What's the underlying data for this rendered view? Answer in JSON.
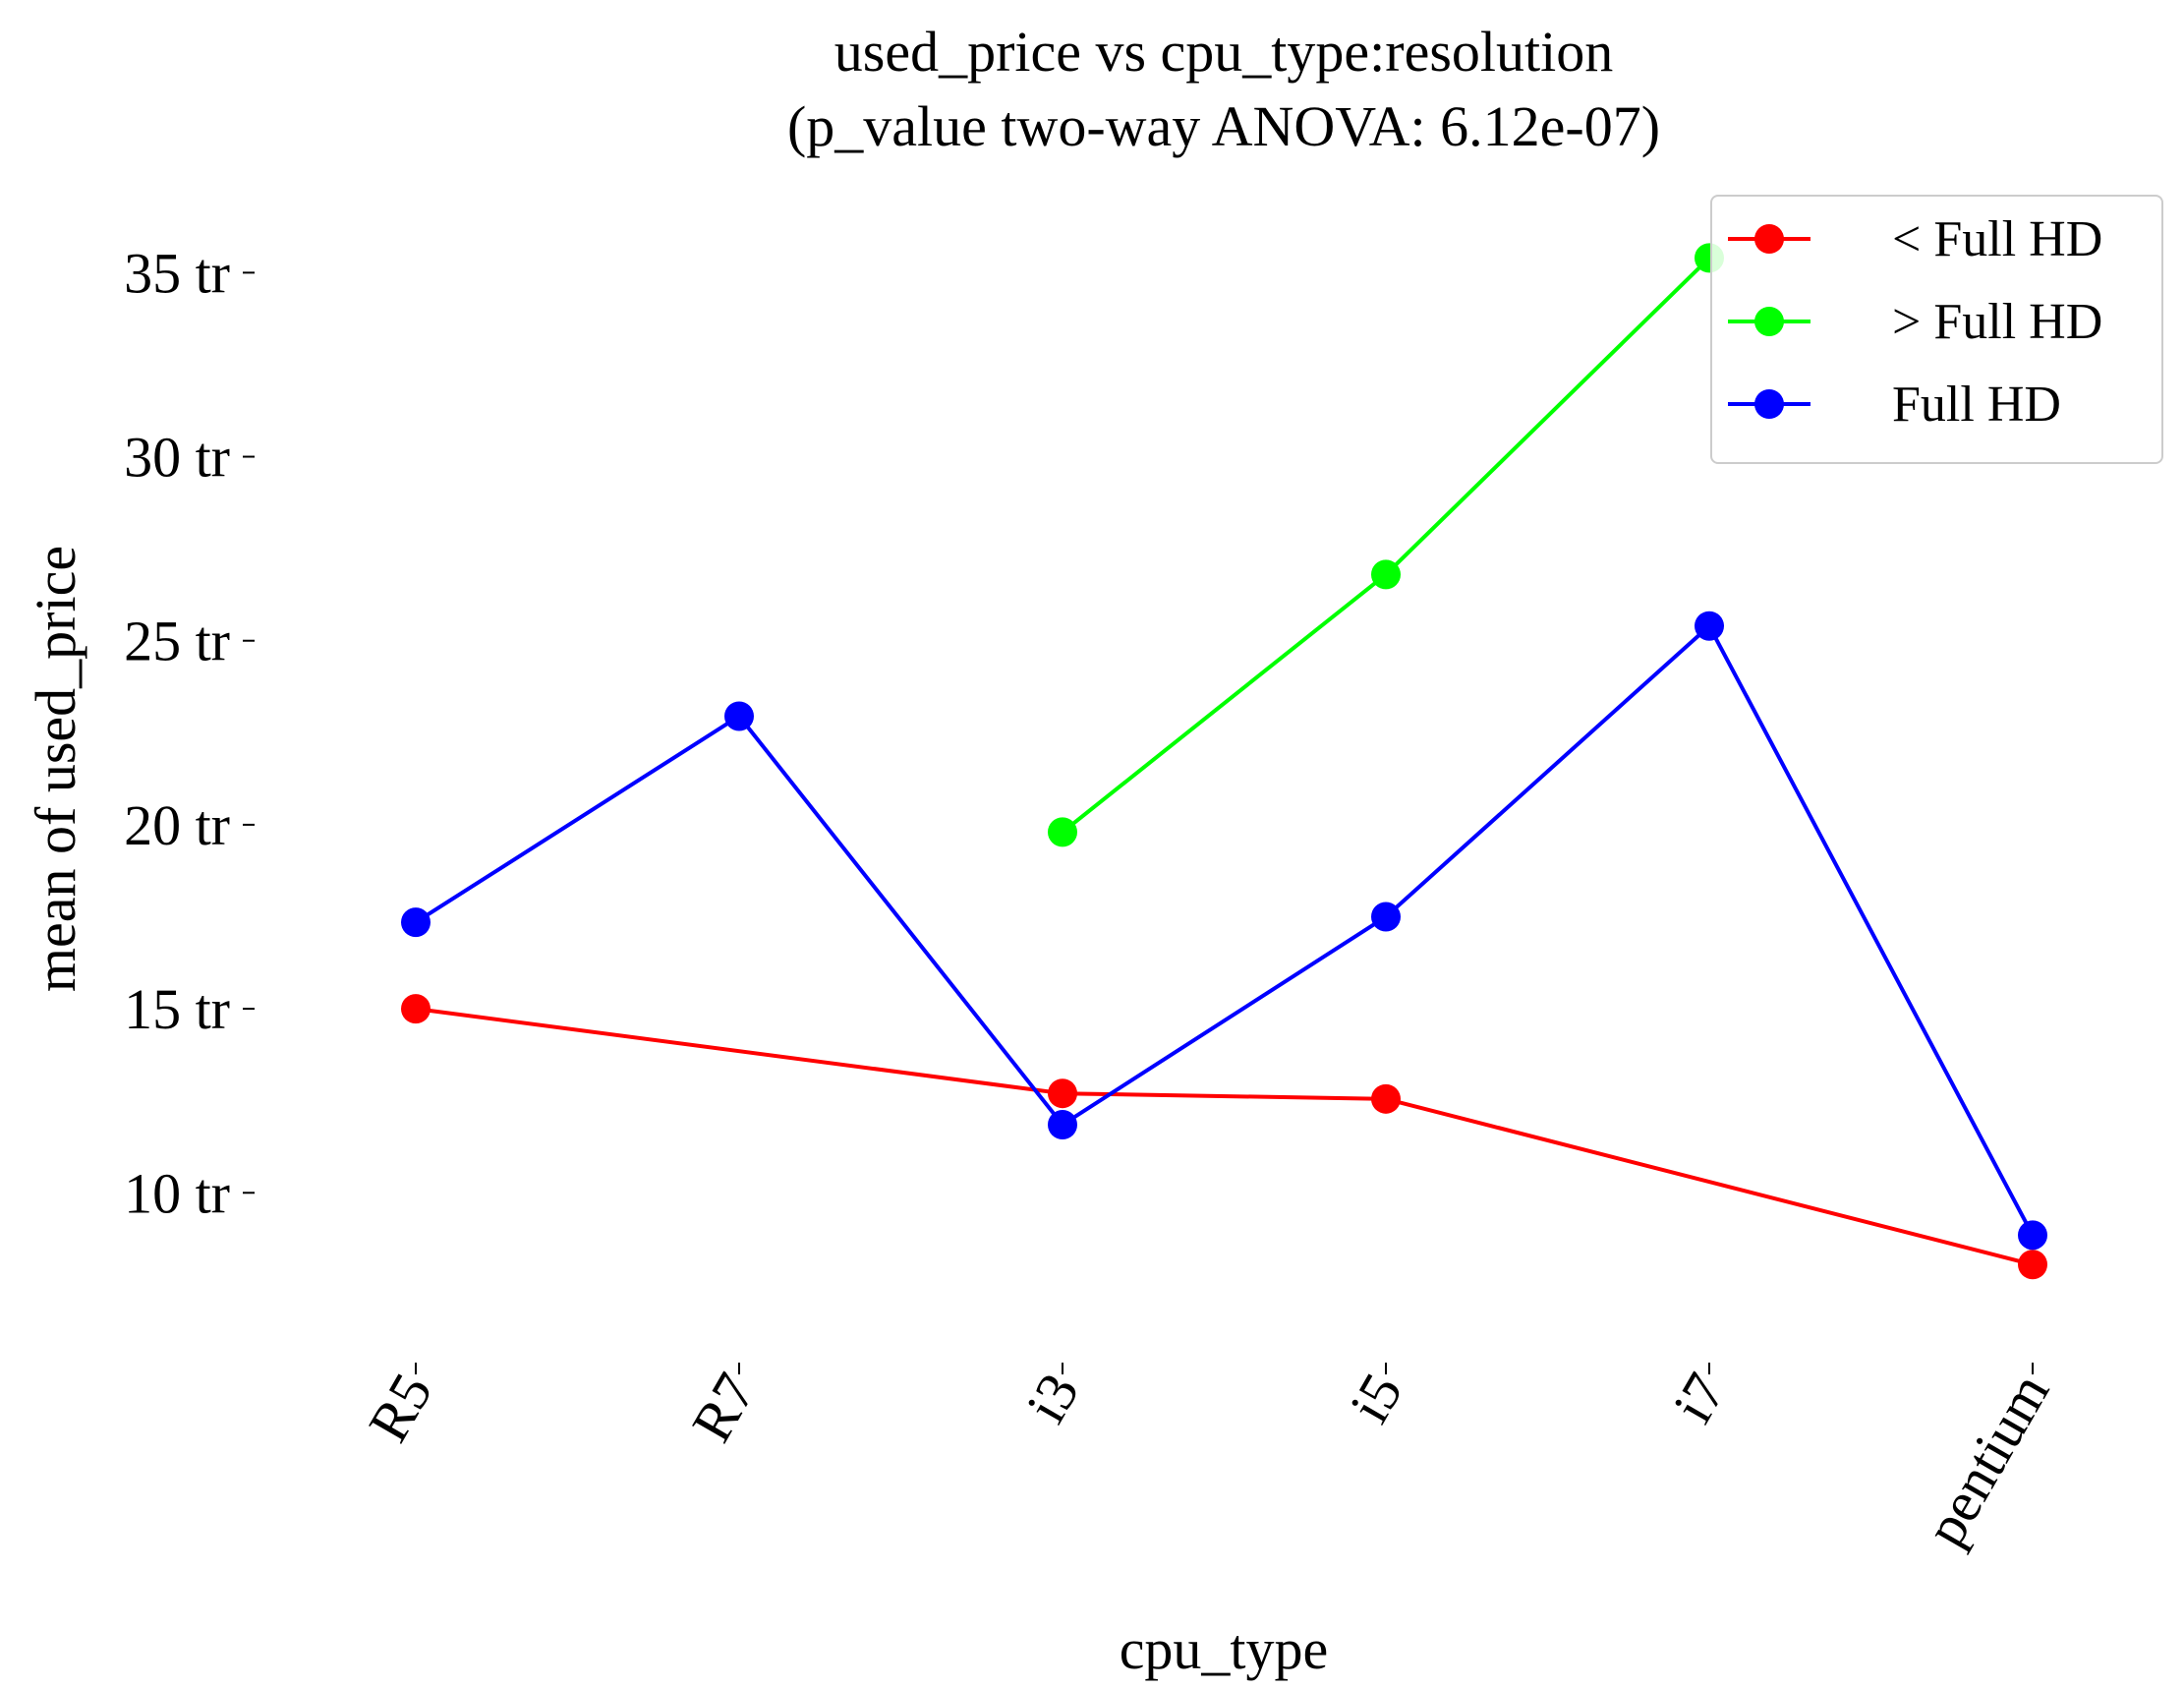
{
  "chart_data": {
    "type": "line",
    "title": "used_price vs cpu_type:resolution",
    "subtitle": "(p_value two-way ANOVA: 6.12e-07)",
    "xlabel": "cpu_type",
    "ylabel": "mean of used_price",
    "categories": [
      "R5",
      "R7",
      "i3",
      "i5",
      "i7",
      "pentium"
    ],
    "y_ticks": [
      {
        "value": 10,
        "label": "10 tr"
      },
      {
        "value": 15,
        "label": "15 tr"
      },
      {
        "value": 20,
        "label": "20 tr"
      },
      {
        "value": 25,
        "label": "25 tr"
      },
      {
        "value": 30,
        "label": "30 tr"
      },
      {
        "value": 35,
        "label": "35 tr"
      }
    ],
    "ylim": [
      5.6,
      37.2
    ],
    "grid": false,
    "legend_position": "top-right",
    "series": [
      {
        "name": "< Full HD",
        "color": "#ff0000",
        "values": [
          15.0,
          null,
          12.7,
          12.55,
          null,
          8.05
        ]
      },
      {
        "name": "> Full HD",
        "color": "#00ff00",
        "values": [
          null,
          null,
          19.8,
          26.8,
          35.4,
          null
        ]
      },
      {
        "name": "Full HD",
        "color": "#0000ff",
        "values": [
          17.35,
          22.95,
          11.85,
          17.5,
          25.4,
          8.85
        ]
      }
    ]
  }
}
